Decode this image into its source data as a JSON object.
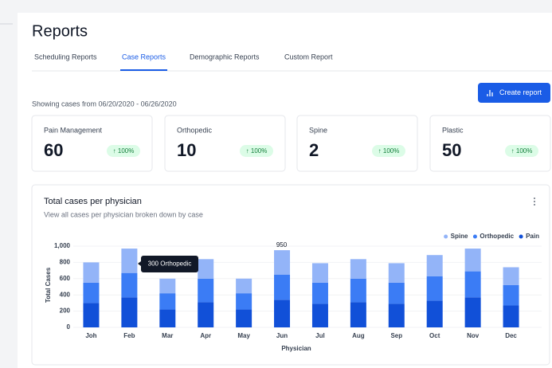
{
  "header": {
    "title": "Reports"
  },
  "tabs": [
    "Scheduling Reports",
    "Case Reports",
    "Demographic Reports",
    "Custom Report"
  ],
  "active_tab": 1,
  "button": "Create report",
  "range_text": "Showing cases from 06/20/2020 - 06/26/2020",
  "cards": [
    {
      "label": "Pain Management",
      "value": 60,
      "change": "↑ 100%"
    },
    {
      "label": "Orthopedic",
      "value": 10,
      "change": "↑ 100%"
    },
    {
      "label": "Spine",
      "value": 2,
      "change": "↑ 100%"
    },
    {
      "label": "Plastic",
      "value": 50,
      "change": "↑ 100%"
    }
  ],
  "chart_data": {
    "type": "stacked_bar",
    "title": "Total cases per physician",
    "subtitle": "View all cases per physician broken down by case",
    "x_label": "Physician",
    "y_label": "Total Cases",
    "categories": [
      "Joh",
      "Feb",
      "Mar",
      "Apr",
      "May",
      "Jun",
      "Jul",
      "Aug",
      "Sep",
      "Oct",
      "Nov",
      "Dec"
    ],
    "series": [
      {
        "name": "Spine",
        "color": "#93b4f8",
        "values": [
          250,
          300,
          180,
          240,
          180,
          300,
          240,
          240,
          240,
          260,
          280,
          220
        ]
      },
      {
        "name": "Orthopedic",
        "color": "#3b7cf5",
        "values": [
          250,
          300,
          200,
          290,
          200,
          310,
          260,
          290,
          260,
          300,
          320,
          250
        ]
      },
      {
        "name": "Pain",
        "color": "#1150d8",
        "values": [
          300,
          370,
          220,
          310,
          220,
          340,
          290,
          310,
          290,
          330,
          370,
          270
        ]
      }
    ],
    "ylim": [
      0,
      1000
    ],
    "yticks": [
      0,
      200,
      400,
      600,
      800,
      {
        "value": 1000,
        "label": "1,000"
      }
    ],
    "legend": "top-right",
    "annotation": {
      "value": 950
    },
    "tooltip": "300 Orthopedic"
  }
}
